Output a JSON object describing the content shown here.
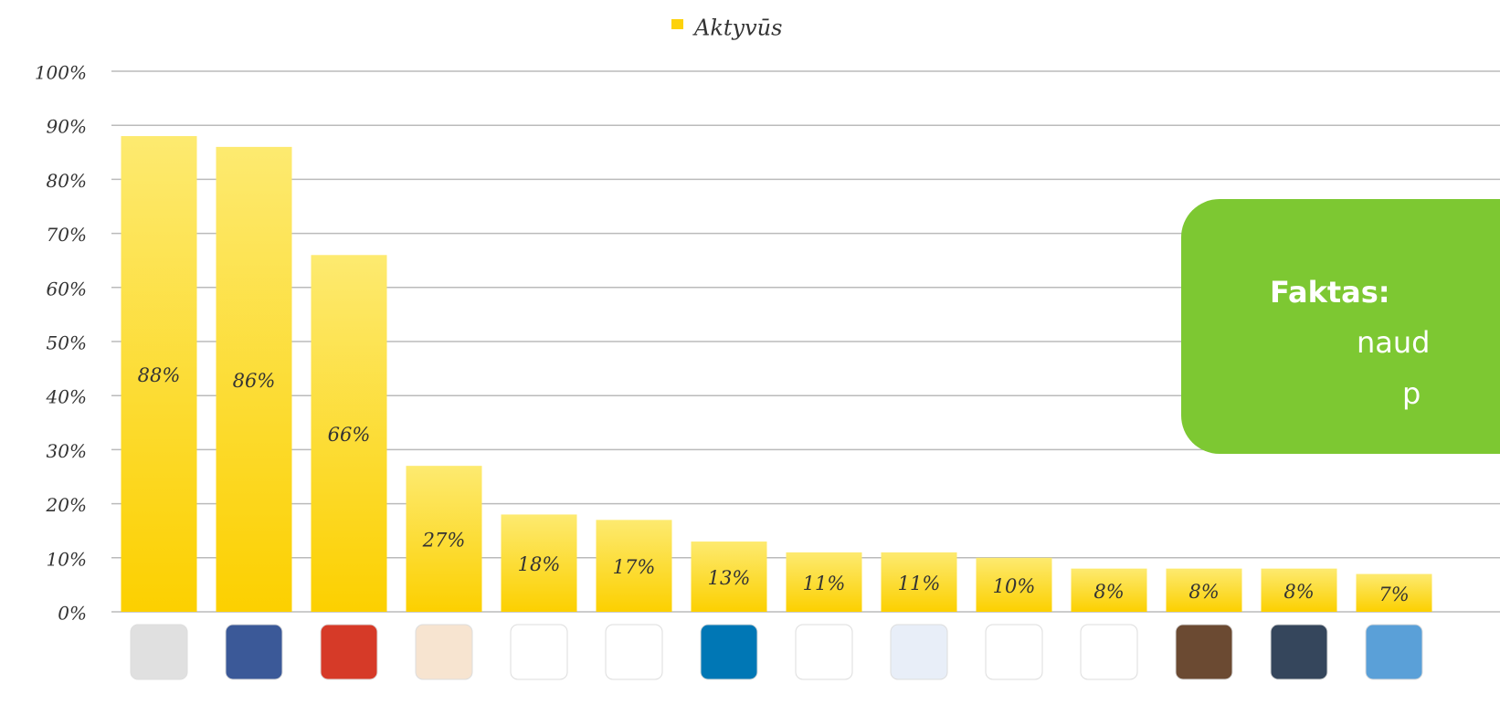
{
  "chart_data": {
    "type": "bar",
    "legend": "Aktyvūs",
    "categories": [
      null,
      null,
      null,
      null,
      null,
      null,
      null,
      null,
      null,
      null,
      null,
      null,
      null,
      null
    ],
    "series": [
      {
        "name": "Aktyvūs",
        "color": "#fdd20a",
        "values": [
          88,
          86,
          66,
          27,
          18,
          17,
          13,
          11,
          11,
          10,
          8,
          8,
          8,
          7
        ],
        "value_labels": [
          "88%",
          "86%",
          "66%",
          "27%",
          "18%",
          "17%",
          "13%",
          "11%",
          "11%",
          "10%",
          "8%",
          "8%",
          "8%",
          "7%"
        ]
      }
    ],
    "ylim": [
      0,
      100
    ],
    "yticks": [
      {
        "value": 0,
        "label": "0%"
      },
      {
        "value": 10,
        "label": "10%"
      },
      {
        "value": 20,
        "label": "20%"
      },
      {
        "value": 30,
        "label": "30%"
      },
      {
        "value": 40,
        "label": "40%"
      },
      {
        "value": 50,
        "label": "50%"
      },
      {
        "value": 60,
        "label": "60%"
      },
      {
        "value": 70,
        "label": "70%"
      },
      {
        "value": 80,
        "label": "80%"
      },
      {
        "value": 90,
        "label": "90%"
      },
      {
        "value": 100,
        "label": "100%"
      }
    ],
    "grid": true,
    "annotation": {
      "lines": [
        "Faktas:",
        "naud",
        "p"
      ],
      "color": "#7dc832"
    }
  }
}
